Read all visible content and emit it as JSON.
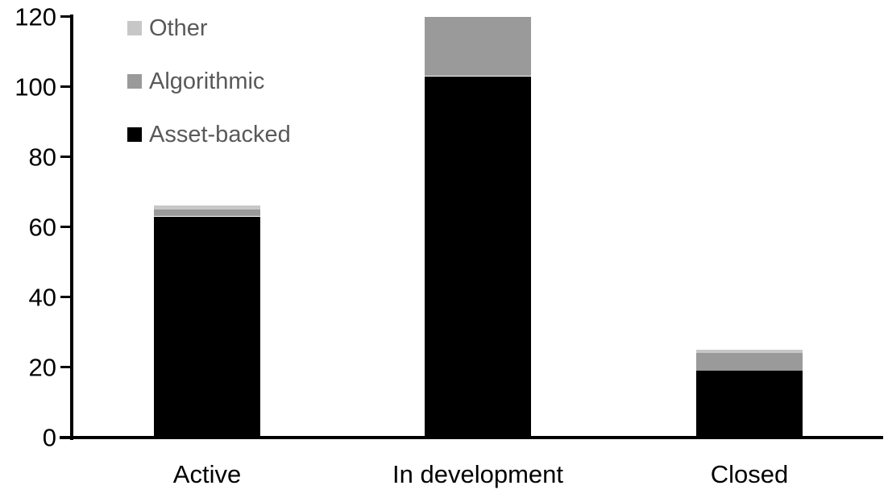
{
  "chart_data": {
    "type": "bar",
    "stacked": true,
    "title": "",
    "xlabel": "",
    "ylabel": "",
    "categories": [
      "Active",
      "In development",
      "Closed"
    ],
    "series": [
      {
        "name": "Asset-backed",
        "color": "#000000",
        "values": [
          63,
          103,
          19
        ]
      },
      {
        "name": "Algorithmic",
        "color": "#9A9A9A",
        "values": [
          2,
          17,
          5
        ]
      },
      {
        "name": "Other",
        "color": "#C7C7C7",
        "values": [
          1,
          0,
          1
        ]
      }
    ],
    "stack_totals": [
      66,
      120,
      25
    ],
    "ylim": [
      0,
      120
    ],
    "yticks": [
      0,
      20,
      40,
      60,
      80,
      100,
      120
    ],
    "grid": false,
    "background": "#FFFFFF",
    "axis_color": "#000000",
    "legend": {
      "position": "top-left",
      "items": [
        "Other",
        "Algorithmic",
        "Asset-backed"
      ],
      "text_color": "#595959"
    }
  }
}
